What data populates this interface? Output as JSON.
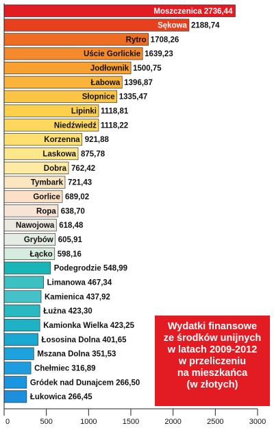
{
  "chart_data": {
    "type": "bar",
    "orientation": "horizontal",
    "categories": [
      "Moszczenica",
      "Sękowa",
      "Rytro",
      "Uście Gorlickie",
      "Jodłownik",
      "Łabowa",
      "Słopnice",
      "Lipinki",
      "Niedźwiedź",
      "Korzenna",
      "Laskowa",
      "Dobra",
      "Tymbark",
      "Gorlice",
      "Ropa",
      "Nawojowa",
      "Grybów",
      "Łącko",
      "Podegrodzie",
      "Limanowa",
      "Kamienica",
      "Łużna",
      "Kamionka Wielka",
      "Łososina Dolna",
      "Mszana Dolna",
      "Chełmiec",
      "Gródek nad Dunajcem",
      "Łukowica"
    ],
    "values": [
      2736.44,
      2188.74,
      1708.26,
      1639.23,
      1500.75,
      1396.87,
      1335.47,
      1118.81,
      1118.22,
      921.88,
      875.78,
      762.42,
      721.43,
      689.02,
      638.7,
      618.48,
      605.91,
      598.16,
      548.99,
      467.34,
      437.92,
      423.3,
      423.25,
      401.65,
      351.53,
      316.89,
      266.5,
      266.45
    ],
    "value_labels": [
      "2736,44",
      "2188,74",
      "1708,26",
      "1639,23",
      "1500,75",
      "1396,87",
      "1335,47",
      "1118,81",
      "1118,22",
      "921,88",
      "875,78",
      "762,42",
      "721,43",
      "689,02",
      "638,70",
      "618,48",
      "605,91",
      "598,16",
      "548,99",
      "467,34",
      "437,92",
      "423,30",
      "423,25",
      "401,65",
      "351,53",
      "316,89",
      "266,50",
      "266,45"
    ],
    "colors": [
      "#e31b23",
      "#e8401e",
      "#ef6d22",
      "#f58a2c",
      "#f8a030",
      "#fab43a",
      "#fbc444",
      "#fdd04c",
      "#fdd85c",
      "#fde070",
      "#fee68a",
      "#feeaa2",
      "#fbe6c2",
      "#fbe0c6",
      "#f6e4d4",
      "#eceae0",
      "#e4ece4",
      "#d6ecdf",
      "#1ab5b8",
      "#3cc0c2",
      "#45c2c8",
      "#29b9c2",
      "#1fb2c4",
      "#1aa8d2",
      "#1ca2dc",
      "#1d9de0",
      "#1a96e0",
      "#1e8fdc"
    ],
    "xlim": [
      0,
      3000
    ],
    "x_ticks": [
      0,
      500,
      1000,
      1500,
      2000,
      2500,
      3000
    ],
    "grid": false
  },
  "info_box": {
    "lines": [
      "Wydatki finansowe",
      "ze środków unijnych",
      "w latach 2009-2012",
      "w przeliczeniu",
      "na mieszkańca",
      "(w złotych)"
    ],
    "background": "#e31b23"
  }
}
